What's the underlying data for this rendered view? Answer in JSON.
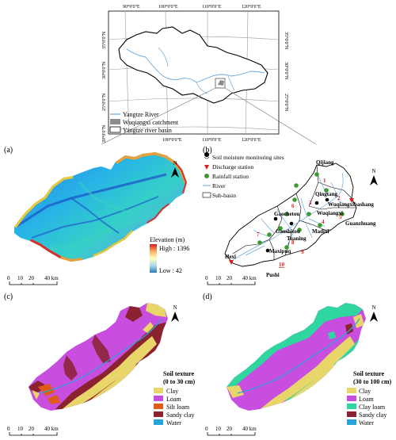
{
  "inset": {
    "lon_ticks_top": [
      "90°0'0\"E",
      "100°0'0\"E",
      "110°0'0\"E",
      "120°0'0\"E"
    ],
    "lon_ticks_bottom": [
      "100°0'0\"E",
      "110°0'0\"E",
      "120°0'0\"E"
    ],
    "lat_ticks_left": [
      "35°0'0\"N",
      "30°0'0\"N",
      "25°0'0\"N",
      "20°0'0\"N"
    ],
    "lat_ticks_right": [
      "35°0'0\"N",
      "30°0'0\"N",
      "25°0'0\"N"
    ],
    "legend": [
      {
        "label": "Yangtze River",
        "symbol": "line",
        "color": "#6aa9dc"
      },
      {
        "label": "Wuqiangxi catchment",
        "symbol": "fill",
        "color": "#8c8c8c"
      },
      {
        "label": "Yangtze river basin",
        "symbol": "outline",
        "color": "#000000"
      }
    ]
  },
  "panel_a": {
    "tag": "(a)",
    "north": "N",
    "legend_title": "Elevation (m)",
    "high_label": "High : 1396",
    "low_label": "Low : 42",
    "scale_labels": [
      "0",
      "10",
      "20",
      "40 km"
    ]
  },
  "panel_b": {
    "tag": "(b)",
    "north": "N",
    "legend": [
      {
        "label": "Soil moisture monitoring sites",
        "symbol": "soil-site"
      },
      {
        "label": "Discharge station",
        "symbol": "triangle",
        "color": "#d62020"
      },
      {
        "label": "Rainfall station",
        "symbol": "dot",
        "color": "#3a9a2e"
      },
      {
        "label": "River",
        "symbol": "line",
        "color": "#6aa9dc"
      },
      {
        "label": "Sub-basin",
        "symbol": "box"
      }
    ],
    "stations": [
      "Qijiang",
      "Qingtang",
      "Wuqiangxibashang",
      "Gaochetou",
      "Wuqiangxi",
      "Gaoshitou",
      "Madixi",
      "Tuaning",
      "Guanzhuang",
      "Maxipuq",
      "Hexi",
      "Pushi"
    ],
    "subbasins": [
      "1",
      "2",
      "3",
      "4",
      "5",
      "6",
      "7",
      "8",
      "9",
      "10"
    ],
    "scale_labels": [
      "0",
      "10",
      "20",
      "40 km"
    ]
  },
  "panel_c": {
    "tag": "(c)",
    "north": "N",
    "legend_title": "Soil texture\n(0 to 30 cm)",
    "legend": [
      {
        "label": "Clay",
        "color": "#e8d66a"
      },
      {
        "label": "Loam",
        "color": "#c84ee0"
      },
      {
        "label": "Silt loam",
        "color": "#e05a1a"
      },
      {
        "label": "Sandy clay",
        "color": "#8b2230"
      },
      {
        "label": "Water",
        "color": "#27a4da"
      }
    ],
    "scale_labels": [
      "0",
      "10",
      "20",
      "40 km"
    ]
  },
  "panel_d": {
    "tag": "(d)",
    "north": "N",
    "legend_title": "Soil texture\n(30 to 100 cm)",
    "legend": [
      {
        "label": "Clay",
        "color": "#e8d66a"
      },
      {
        "label": "Loam",
        "color": "#c84ee0"
      },
      {
        "label": "Clay loam",
        "color": "#2fd6a0"
      },
      {
        "label": "Sandy clay",
        "color": "#8b2230"
      },
      {
        "label": "Water",
        "color": "#27a4da"
      }
    ],
    "scale_labels": [
      "0",
      "10",
      "20",
      "40 km"
    ]
  }
}
